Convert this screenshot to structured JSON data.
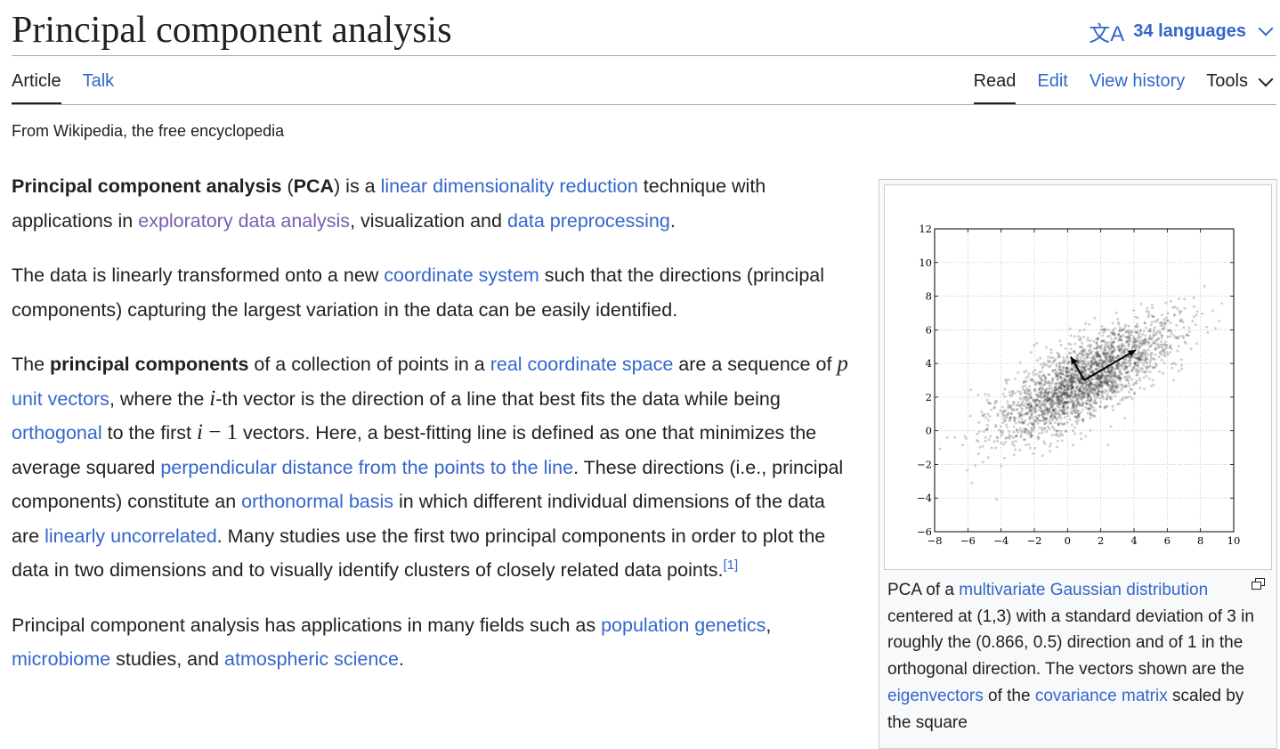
{
  "header": {
    "title": "Principal component analysis",
    "languages_label": "34 languages",
    "language_icon": "translate-icon"
  },
  "tabs": {
    "left": [
      "Article",
      "Talk"
    ],
    "right": [
      "Read",
      "Edit",
      "View history",
      "Tools"
    ]
  },
  "tagline": "From Wikipedia, the free encyclopedia",
  "article": {
    "p1": [
      {
        "t": "Principal component analysis",
        "b": 1
      },
      {
        "t": " ("
      },
      {
        "t": "PCA",
        "b": 1
      },
      {
        "t": ") is a "
      },
      {
        "t": "linear dimensionality reduction",
        "l": 1
      },
      {
        "t": " technique with applications in "
      },
      {
        "t": "exploratory data analysis",
        "l": 1,
        "v": 1
      },
      {
        "t": ", visualization and "
      },
      {
        "t": "data preprocessing",
        "l": 1
      },
      {
        "t": "."
      }
    ],
    "p2": [
      {
        "t": "The data is linearly transformed onto a new "
      },
      {
        "t": "coordinate system",
        "l": 1
      },
      {
        "t": " such that the directions (principal components) capturing the largest variation in the data can be easily identified."
      }
    ],
    "p3": [
      {
        "t": "The "
      },
      {
        "t": "principal components",
        "b": 1
      },
      {
        "t": " of a collection of points in a "
      },
      {
        "t": "real coordinate space",
        "l": 1
      },
      {
        "t": " are a sequence of "
      },
      {
        "t": "p",
        "m": 1
      },
      {
        "t": " "
      },
      {
        "t": "unit vectors",
        "l": 1
      },
      {
        "t": ", where the "
      },
      {
        "t": "i",
        "m": 1
      },
      {
        "t": "-th vector is the direction of a line that best fits the data while being "
      },
      {
        "t": "orthogonal",
        "l": 1
      },
      {
        "t": " to the first "
      },
      {
        "t": "i",
        "m": 1
      },
      {
        "t": " − 1",
        "mn": 1
      },
      {
        "t": " vectors. Here, a best-fitting line is defined as one that minimizes the average squared "
      },
      {
        "t": "perpendicular distance from the points to the line",
        "l": 1
      },
      {
        "t": ". These directions (i.e., principal components) constitute an "
      },
      {
        "t": "orthonormal basis",
        "l": 1
      },
      {
        "t": " in which different individual dimensions of the data are "
      },
      {
        "t": "linearly uncorrelated",
        "l": 1
      },
      {
        "t": ". Many studies use the first two principal components in order to plot the data in two dimensions and to visually identify clusters of closely related data points."
      },
      {
        "t": "[1]",
        "l": 1,
        "s": 1
      }
    ],
    "p4": [
      {
        "t": "Principal component analysis has applications in many fields such as "
      },
      {
        "t": "population genetics",
        "l": 1
      },
      {
        "t": ", "
      },
      {
        "t": "microbiome",
        "l": 1
      },
      {
        "t": " studies, and "
      },
      {
        "t": "atmospheric science",
        "l": 1
      },
      {
        "t": "."
      }
    ]
  },
  "figure": {
    "caption": [
      {
        "t": "PCA of a "
      },
      {
        "t": "multivariate Gaussian distribution",
        "l": 1
      },
      {
        "t": " centered at (1,3) with a standard deviation of 3 in roughly the (0.866, 0.5) direction and of 1 in the orthogonal direction. The vectors shown are the "
      },
      {
        "t": "eigenvectors",
        "l": 1
      },
      {
        "t": " of the "
      },
      {
        "t": "covariance matrix",
        "l": 1
      },
      {
        "t": " scaled by the square"
      }
    ],
    "magnify_icon": "magnify-icon"
  },
  "chart_data": {
    "type": "scatter",
    "title": "",
    "xlabel": "",
    "ylabel": "",
    "xlim": [
      -8,
      10
    ],
    "ylim": [
      -6,
      12
    ],
    "xticks": [
      -8,
      -6,
      -4,
      -2,
      0,
      2,
      4,
      6,
      8,
      10
    ],
    "yticks": [
      -6,
      -4,
      -2,
      0,
      2,
      4,
      6,
      8,
      10,
      12
    ],
    "grid": true,
    "distribution": {
      "center": [
        1,
        3
      ],
      "sd_major": 3,
      "sd_minor": 1,
      "direction": [
        0.866,
        0.5
      ],
      "n_points": 2500
    },
    "vectors": [
      {
        "from": [
          1,
          3
        ],
        "to": [
          4.1,
          4.8
        ]
      },
      {
        "from": [
          1,
          3
        ],
        "to": [
          0.2,
          4.4
        ]
      }
    ]
  }
}
